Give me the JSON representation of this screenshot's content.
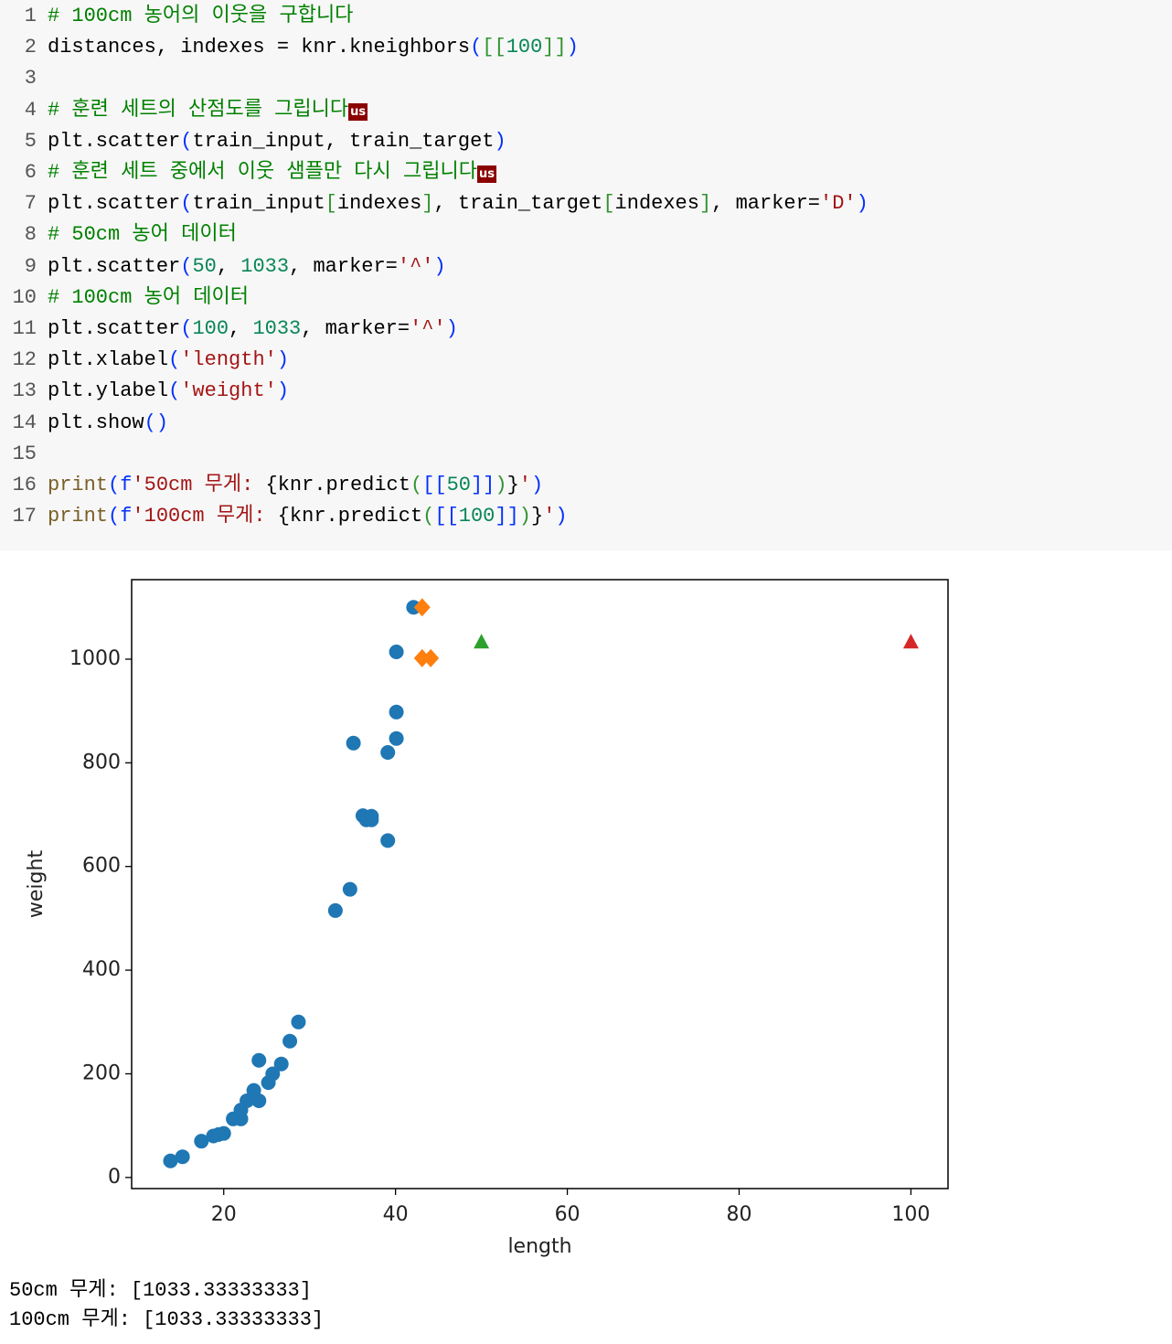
{
  "code": {
    "lines": [
      {
        "number": "1",
        "tokens": [
          {
            "t": "# 100cm 농어의 이웃을 구합니다",
            "s": "comment"
          }
        ]
      },
      {
        "number": "2",
        "tokens": [
          {
            "t": "distances, indexes = knr.kneighbors",
            "s": "plain"
          },
          {
            "t": "(",
            "s": "bracket"
          },
          {
            "t": "[[",
            "s": "bracket2"
          },
          {
            "t": "100",
            "s": "number"
          },
          {
            "t": "]]",
            "s": "bracket2"
          },
          {
            "t": ")",
            "s": "bracket"
          }
        ]
      },
      {
        "number": "3",
        "tokens": []
      },
      {
        "number": "4",
        "tokens": [
          {
            "t": "# 훈련 세트의 산점도를 그립니다",
            "s": "comment"
          },
          {
            "t": "us",
            "s": "badge"
          }
        ]
      },
      {
        "number": "5",
        "tokens": [
          {
            "t": "plt.scatter",
            "s": "plain"
          },
          {
            "t": "(",
            "s": "bracket"
          },
          {
            "t": "train_input, train_target",
            "s": "plain"
          },
          {
            "t": ")",
            "s": "bracket"
          }
        ]
      },
      {
        "number": "6",
        "tokens": [
          {
            "t": "# 훈련 세트 중에서 이웃 샘플만 다시 그립니다",
            "s": "comment"
          },
          {
            "t": "us",
            "s": "badge"
          }
        ]
      },
      {
        "number": "7",
        "tokens": [
          {
            "t": "plt.scatter",
            "s": "plain"
          },
          {
            "t": "(",
            "s": "bracket"
          },
          {
            "t": "train_input",
            "s": "plain"
          },
          {
            "t": "[",
            "s": "bracket2"
          },
          {
            "t": "indexes",
            "s": "plain"
          },
          {
            "t": "]",
            "s": "bracket2"
          },
          {
            "t": ", train_target",
            "s": "plain"
          },
          {
            "t": "[",
            "s": "bracket2"
          },
          {
            "t": "indexes",
            "s": "plain"
          },
          {
            "t": "]",
            "s": "bracket2"
          },
          {
            "t": ", marker=",
            "s": "plain"
          },
          {
            "t": "'D'",
            "s": "string"
          },
          {
            "t": ")",
            "s": "bracket"
          }
        ]
      },
      {
        "number": "8",
        "tokens": [
          {
            "t": "# 50cm 농어 데이터",
            "s": "comment"
          }
        ]
      },
      {
        "number": "9",
        "tokens": [
          {
            "t": "plt.scatter",
            "s": "plain"
          },
          {
            "t": "(",
            "s": "bracket"
          },
          {
            "t": "50",
            "s": "number"
          },
          {
            "t": ", ",
            "s": "plain"
          },
          {
            "t": "1033",
            "s": "number"
          },
          {
            "t": ", marker=",
            "s": "plain"
          },
          {
            "t": "'^'",
            "s": "string"
          },
          {
            "t": ")",
            "s": "bracket"
          }
        ]
      },
      {
        "number": "10",
        "tokens": [
          {
            "t": "# 100cm 농어 데이터",
            "s": "comment"
          }
        ]
      },
      {
        "number": "11",
        "tokens": [
          {
            "t": "plt.scatter",
            "s": "plain"
          },
          {
            "t": "(",
            "s": "bracket"
          },
          {
            "t": "100",
            "s": "number"
          },
          {
            "t": ", ",
            "s": "plain"
          },
          {
            "t": "1033",
            "s": "number"
          },
          {
            "t": ", marker=",
            "s": "plain"
          },
          {
            "t": "'^'",
            "s": "string"
          },
          {
            "t": ")",
            "s": "bracket"
          }
        ]
      },
      {
        "number": "12",
        "tokens": [
          {
            "t": "plt.xlabel",
            "s": "plain"
          },
          {
            "t": "(",
            "s": "bracket"
          },
          {
            "t": "'length'",
            "s": "string"
          },
          {
            "t": ")",
            "s": "bracket"
          }
        ]
      },
      {
        "number": "13",
        "tokens": [
          {
            "t": "plt.ylabel",
            "s": "plain"
          },
          {
            "t": "(",
            "s": "bracket"
          },
          {
            "t": "'weight'",
            "s": "string"
          },
          {
            "t": ")",
            "s": "bracket"
          }
        ]
      },
      {
        "number": "14",
        "tokens": [
          {
            "t": "plt.show",
            "s": "plain"
          },
          {
            "t": "()",
            "s": "bracket"
          }
        ]
      },
      {
        "number": "15",
        "tokens": []
      },
      {
        "number": "16",
        "tokens": [
          {
            "t": "print",
            "s": "function"
          },
          {
            "t": "(",
            "s": "bracket"
          },
          {
            "t": "f",
            "s": "bracket"
          },
          {
            "t": "'50cm 무게: ",
            "s": "string"
          },
          {
            "t": "{knr.predict",
            "s": "plain"
          },
          {
            "t": "(",
            "s": "bracket2"
          },
          {
            "t": "[[",
            "s": "bracket"
          },
          {
            "t": "50",
            "s": "number"
          },
          {
            "t": "]]",
            "s": "bracket"
          },
          {
            "t": ")",
            "s": "bracket2"
          },
          {
            "t": "}",
            "s": "plain"
          },
          {
            "t": "'",
            "s": "string"
          },
          {
            "t": ")",
            "s": "bracket"
          }
        ]
      },
      {
        "number": "17",
        "tokens": [
          {
            "t": "print",
            "s": "function"
          },
          {
            "t": "(",
            "s": "bracket"
          },
          {
            "t": "f",
            "s": "bracket"
          },
          {
            "t": "'100cm 무게: ",
            "s": "string"
          },
          {
            "t": "{knr.predict",
            "s": "plain"
          },
          {
            "t": "(",
            "s": "bracket2"
          },
          {
            "t": "[[",
            "s": "bracket"
          },
          {
            "t": "100",
            "s": "number"
          },
          {
            "t": "]]",
            "s": "bracket"
          },
          {
            "t": ")",
            "s": "bracket2"
          },
          {
            "t": "}",
            "s": "plain"
          },
          {
            "t": "'",
            "s": "string"
          },
          {
            "t": ")",
            "s": "bracket"
          }
        ]
      }
    ]
  },
  "chart_data": {
    "type": "scatter",
    "x_label": "length",
    "y_label": "weight",
    "xlim": [
      9.28,
      104.32
    ],
    "ylim": [
      -21.4,
      1153.4
    ],
    "xticks": [
      20,
      40,
      60,
      80,
      100
    ],
    "yticks": [
      0,
      200,
      400,
      600,
      800,
      1000
    ],
    "series": [
      {
        "color": "#1f77b4",
        "marker": "o",
        "x": [
          13.8,
          15.2,
          17.4,
          18.8,
          19.4,
          20,
          21.1,
          22,
          22,
          22.7,
          23.5,
          24.1,
          24.1,
          25.2,
          25.7,
          26.7,
          27.7,
          28.7,
          33,
          34.7,
          35.1,
          36.2,
          36.6,
          37.2,
          37.2,
          39.1,
          39.1,
          40.1,
          40.1,
          40.1,
          42.1
        ],
        "values": [
          32,
          40,
          70,
          80,
          83,
          85,
          113,
          113,
          130,
          148,
          168,
          148,
          226,
          183,
          200,
          219,
          263,
          300,
          515,
          556,
          838,
          698,
          690,
          697,
          690,
          650,
          820,
          847,
          898,
          1014,
          1100
        ]
      },
      {
        "color": "#ff7f0e",
        "marker": "D",
        "x": [
          43.1,
          43.1,
          44.1
        ],
        "values": [
          1100,
          1002,
          1002
        ]
      },
      {
        "color": "#2ca02c",
        "marker": "^",
        "x": [
          50
        ],
        "values": [
          1033
        ]
      },
      {
        "color": "#d62728",
        "marker": "^",
        "x": [
          100
        ],
        "values": [
          1033
        ]
      }
    ]
  },
  "output": {
    "lines": [
      "50cm 무게: [1033.33333333]",
      "100cm 무게: [1033.33333333]"
    ]
  }
}
